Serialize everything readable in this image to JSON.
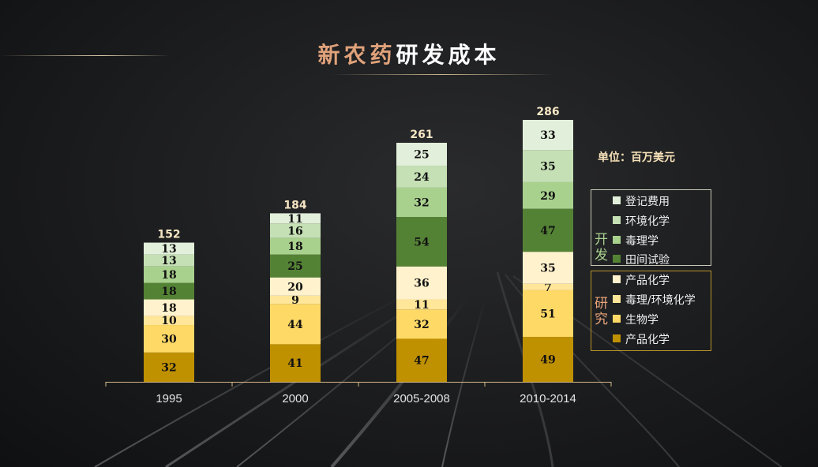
{
  "title": {
    "part1": "新农药",
    "part2": "研发成本"
  },
  "unit_label": "单位：百万美元",
  "colors": {
    "registration": "#e2efda",
    "environmental_chemistry": "#c5e0b4",
    "toxicology": "#a9d18e",
    "field_trials": "#548235",
    "product_chemistry_research": "#fff2cc",
    "tox_env_chemistry": "#ffe699",
    "biology": "#ffd966",
    "product_chemistry_base": "#bf9000"
  },
  "legend": {
    "development": {
      "label": "开发",
      "items": [
        {
          "label": "登记费用",
          "color": "#e2efda"
        },
        {
          "label": "环境化学",
          "color": "#c5e0b4"
        },
        {
          "label": "毒理学",
          "color": "#a9d18e"
        },
        {
          "label": "田间试验",
          "color": "#548235"
        }
      ]
    },
    "research": {
      "label": "研究",
      "items": [
        {
          "label": "产品化学",
          "color": "#fff2cc"
        },
        {
          "label": "毒理/环境化学",
          "color": "#ffe699"
        },
        {
          "label": "生物学",
          "color": "#ffd966"
        },
        {
          "label": "产品化学",
          "color": "#bf9000"
        }
      ]
    }
  },
  "chart_data": {
    "type": "bar",
    "stacked": true,
    "categories": [
      "1995",
      "2000",
      "2005-2008",
      "2010-2014"
    ],
    "totals": [
      152,
      184,
      261,
      286
    ],
    "series": [
      {
        "name": "产品化学",
        "color": "#bf9000",
        "values": [
          32,
          41,
          47,
          49
        ]
      },
      {
        "name": "生物学",
        "color": "#ffd966",
        "values": [
          30,
          44,
          32,
          51
        ]
      },
      {
        "name": "毒理/环境化学",
        "color": "#ffe699",
        "values": [
          10,
          9,
          11,
          7
        ]
      },
      {
        "name": "产品化学",
        "color": "#fff2cc",
        "values": [
          18,
          20,
          36,
          35
        ]
      },
      {
        "name": "田间试验",
        "color": "#548235",
        "values": [
          18,
          25,
          54,
          47
        ]
      },
      {
        "name": "毒理学",
        "color": "#a9d18e",
        "values": [
          18,
          18,
          32,
          29
        ]
      },
      {
        "name": "环境化学",
        "color": "#c5e0b4",
        "values": [
          13,
          16,
          24,
          35
        ]
      },
      {
        "name": "登记费用",
        "color": "#e2efda",
        "values": [
          13,
          11,
          25,
          33
        ]
      }
    ],
    "ylim": [
      0,
      300
    ],
    "grid": false,
    "legend_position": "right",
    "xlabel": "",
    "ylabel": ""
  }
}
